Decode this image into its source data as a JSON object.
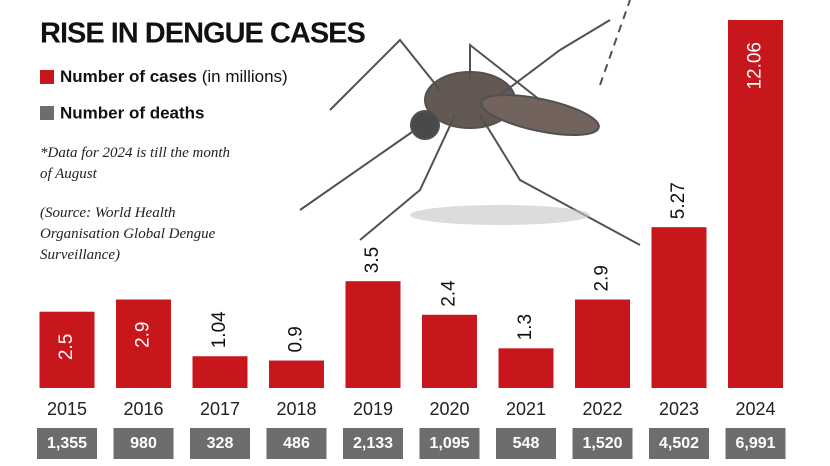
{
  "chart_data": {
    "type": "bar",
    "title": "RISE IN DENGUE CASES",
    "categories": [
      "2015",
      "2016",
      "2017",
      "2018",
      "2019",
      "2020",
      "2021",
      "2022",
      "2023",
      "2024"
    ],
    "series": [
      {
        "name": "Number of cases",
        "unit": "(in millions)",
        "color": "#c8161d",
        "values": [
          2.5,
          2.9,
          1.04,
          0.9,
          3.5,
          2.4,
          1.3,
          2.9,
          5.27,
          12.06
        ]
      },
      {
        "name": "Number of deaths",
        "color": "#6d6d6d",
        "values": [
          1355,
          980,
          328,
          486,
          2133,
          1095,
          548,
          1520,
          4502,
          6991
        ],
        "value_labels": [
          "1,355",
          "980",
          "328",
          "486",
          "2,133",
          "1,095",
          "548",
          "1,520",
          "4,502",
          "6,991"
        ]
      }
    ],
    "note": "*Data for 2024 is till the month of August",
    "source": "(Source: World Health Organisation Global Dengue Surveillance)"
  }
}
